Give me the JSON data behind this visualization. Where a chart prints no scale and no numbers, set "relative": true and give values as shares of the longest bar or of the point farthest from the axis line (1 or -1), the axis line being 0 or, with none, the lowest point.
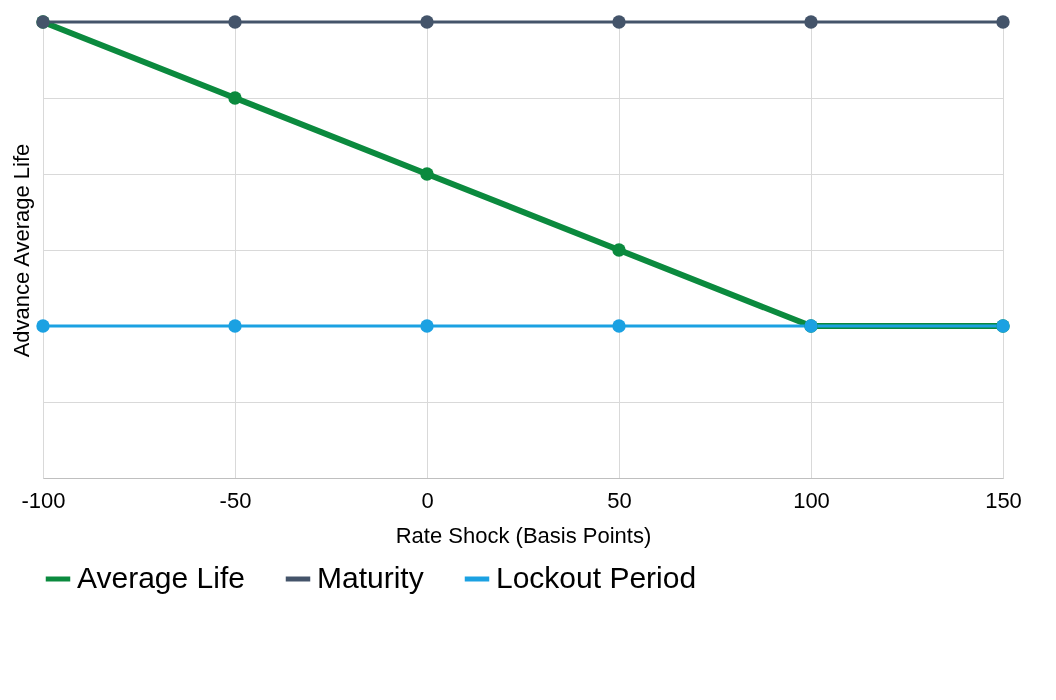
{
  "chart_data": {
    "type": "line",
    "relative": true,
    "xlabel": "Rate Shock (Basis Points)",
    "ylabel": "Advance Average Life",
    "x": [
      -100,
      -50,
      0,
      50,
      100,
      150
    ],
    "xlim": [
      -100,
      150
    ],
    "xticks": [
      -100,
      -50,
      0,
      50,
      100,
      150
    ],
    "series": [
      {
        "name": "Average Life",
        "color": "#0b8a3e",
        "values": [
          1,
          0.8333,
          0.6667,
          0.5,
          0.3333,
          0.3333
        ]
      },
      {
        "name": "Maturity",
        "color": "#44546a",
        "values": [
          1,
          1,
          1,
          1,
          1,
          1
        ]
      },
      {
        "name": "Lockout Period",
        "color": "#1ba1e2",
        "values": [
          0.3333,
          0.3333,
          0.3333,
          0.3333,
          0.3333,
          0.3333
        ]
      }
    ],
    "grid": true,
    "legend": "bottom",
    "marker": "circle",
    "line_style": "solid"
  }
}
